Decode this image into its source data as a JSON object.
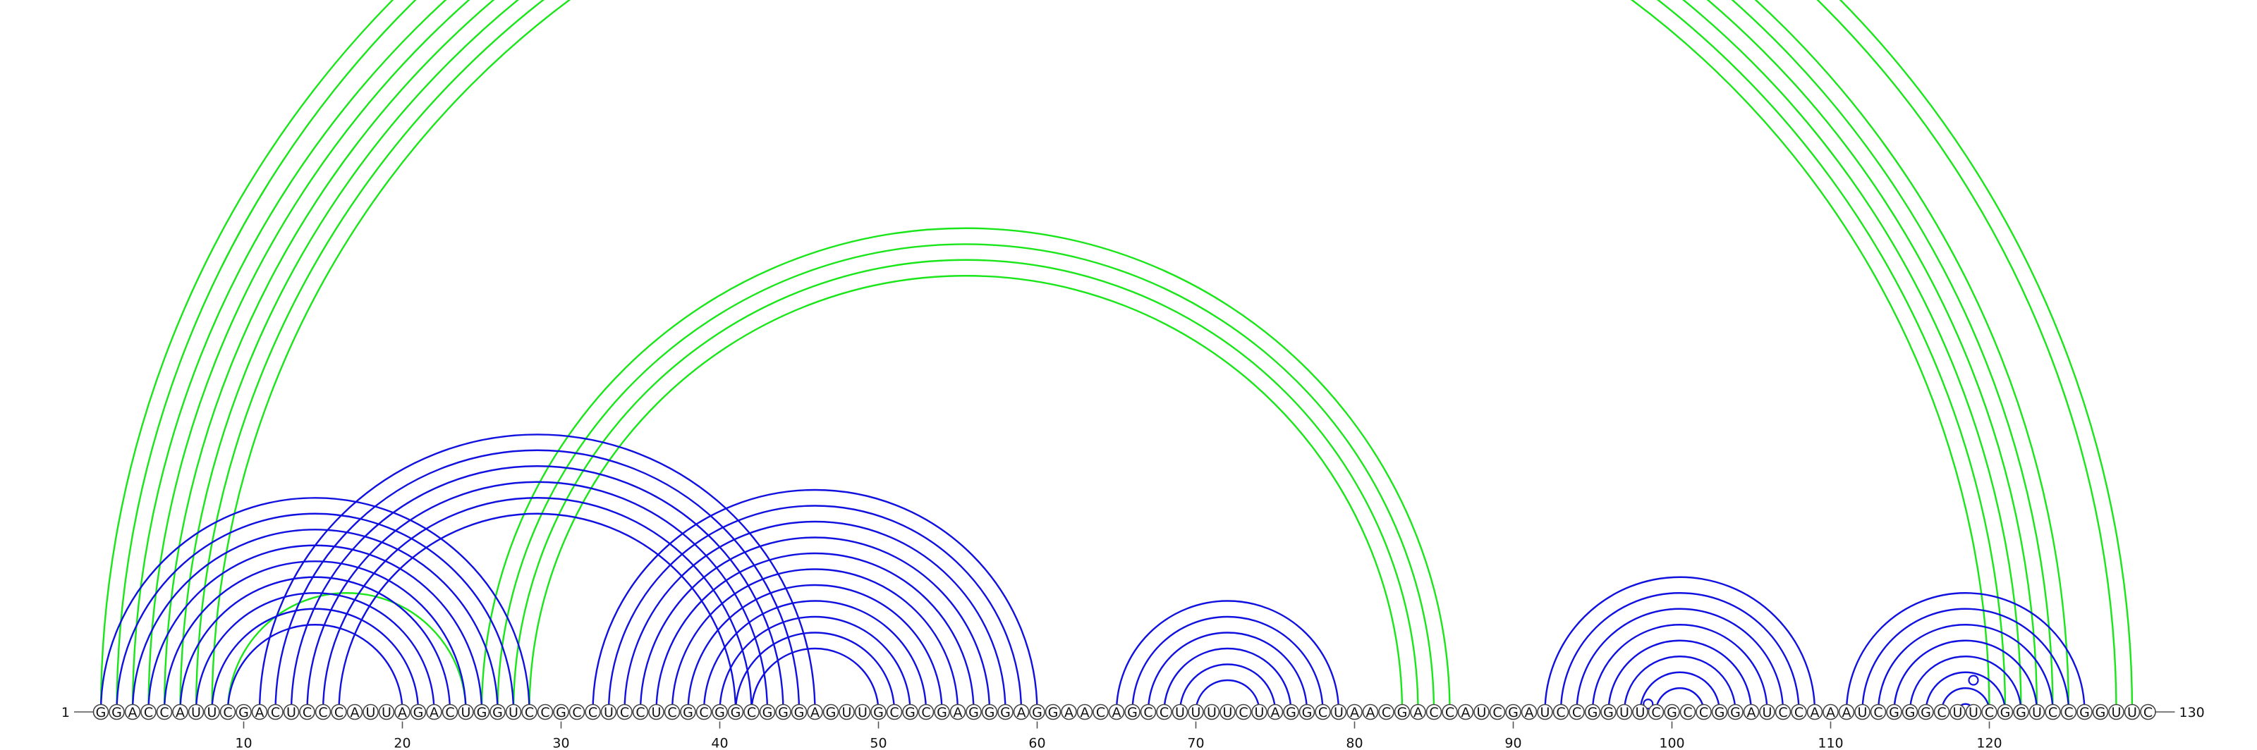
{
  "diagram": {
    "sequence": "GGACCAUUCGACUCCCAUUAGACUGGUCCGCCUCCUCGCGGCGGGAGUUGCGCGAGGGAGGAACAGCCUUUUCUAGGCUAACGACCAUCGAUCCGGUUCGCCGGAUCCAAAUCGGGCUUCGGUCCGGUUC",
    "start_label": "1",
    "end_label": "130",
    "position_labels": [
      "10",
      "20",
      "30",
      "40",
      "50",
      "60",
      "70",
      "80",
      "90",
      "100",
      "110",
      "120"
    ],
    "colors": {
      "blue": "#1010e0",
      "green": "#19e619"
    },
    "arc_groups": [
      {
        "color": "green",
        "pairs": [
          [
            1,
            129
          ],
          [
            2,
            128
          ],
          [
            3,
            125
          ],
          [
            4,
            124
          ],
          [
            5,
            123
          ],
          [
            6,
            122
          ],
          [
            7,
            121
          ],
          [
            8,
            120
          ]
        ],
        "marker_pair": [
          1,
          129
        ]
      },
      {
        "color": "green",
        "pairs": [
          [
            25,
            86
          ],
          [
            26,
            85
          ],
          [
            27,
            84
          ],
          [
            28,
            83
          ]
        ]
      },
      {
        "color": "green",
        "pairs": [
          [
            9,
            24
          ]
        ]
      },
      {
        "color": "blue",
        "pairs": [
          [
            1,
            28
          ],
          [
            2,
            27
          ],
          [
            3,
            26
          ],
          [
            4,
            25
          ],
          [
            5,
            24
          ],
          [
            6,
            23
          ],
          [
            7,
            22
          ],
          [
            8,
            21
          ],
          [
            9,
            20
          ]
        ]
      },
      {
        "color": "blue",
        "pairs": [
          [
            11,
            46
          ],
          [
            12,
            45
          ],
          [
            13,
            44
          ],
          [
            14,
            43
          ],
          [
            15,
            42
          ],
          [
            16,
            41
          ]
        ]
      },
      {
        "color": "blue",
        "pairs": [
          [
            32,
            60
          ],
          [
            33,
            59
          ],
          [
            34,
            58
          ],
          [
            35,
            57
          ],
          [
            36,
            56
          ],
          [
            37,
            55
          ],
          [
            38,
            54
          ],
          [
            39,
            53
          ],
          [
            40,
            52
          ],
          [
            41,
            51
          ],
          [
            42,
            50
          ]
        ]
      },
      {
        "color": "blue",
        "pairs": [
          [
            65,
            79
          ],
          [
            66,
            78
          ],
          [
            67,
            77
          ],
          [
            68,
            76
          ],
          [
            69,
            75
          ],
          [
            70,
            74
          ]
        ]
      },
      {
        "color": "blue",
        "pairs": [
          [
            92,
            109
          ],
          [
            93,
            108
          ],
          [
            94,
            107
          ],
          [
            95,
            106
          ],
          [
            96,
            105
          ],
          [
            97,
            104
          ],
          [
            98,
            103
          ],
          [
            99,
            102
          ]
        ],
        "marker_pair": [
          98,
          99
        ]
      },
      {
        "color": "blue",
        "pairs": [
          [
            111,
            126
          ],
          [
            112,
            125
          ],
          [
            113,
            124
          ],
          [
            114,
            123
          ],
          [
            115,
            122
          ],
          [
            116,
            121
          ],
          [
            117,
            120
          ],
          [
            118,
            119
          ]
        ],
        "marker_pair": [
          117,
          121
        ]
      }
    ]
  }
}
